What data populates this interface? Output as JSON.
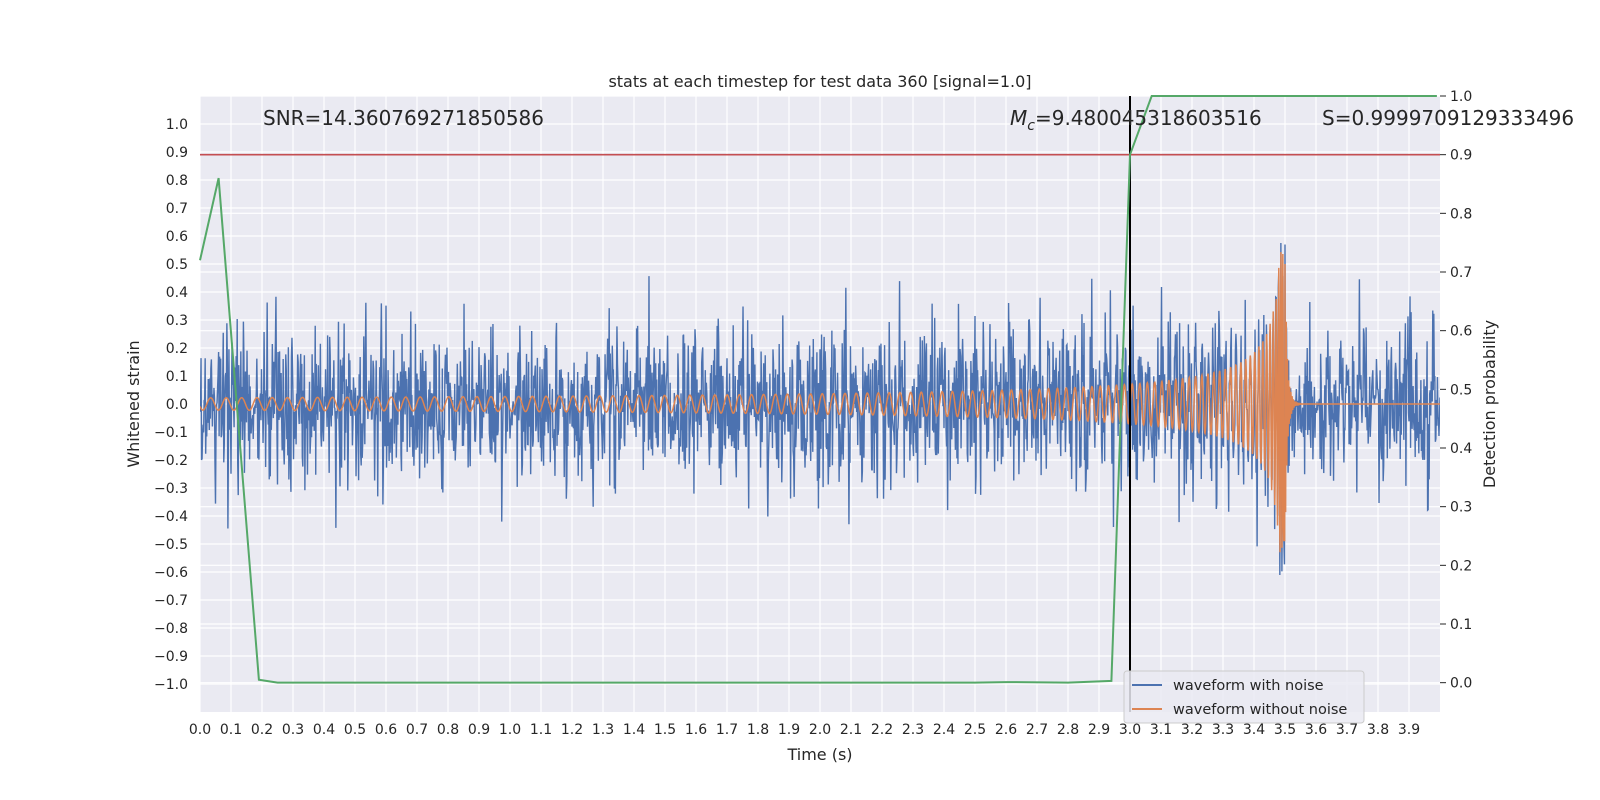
{
  "chart_data": {
    "type": "line",
    "title": "stats at each timestep for test data 360 [signal=1.0]",
    "xlabel": "Time (s)",
    "ylabel": "Whitened strain",
    "y2label": "Detection probability",
    "xlim": [
      0.0,
      4.0
    ],
    "ylim": [
      -1.1,
      1.1
    ],
    "y2lim": [
      -0.05,
      1.0
    ],
    "xticks": [
      "0.0",
      "0.1",
      "0.2",
      "0.3",
      "0.4",
      "0.5",
      "0.6",
      "0.7",
      "0.8",
      "0.9",
      "1.0",
      "1.1",
      "1.2",
      "1.3",
      "1.4",
      "1.5",
      "1.6",
      "1.7",
      "1.8",
      "1.9",
      "2.0",
      "2.1",
      "2.2",
      "2.3",
      "2.4",
      "2.5",
      "2.6",
      "2.7",
      "2.8",
      "2.9",
      "3.0",
      "3.1",
      "3.2",
      "3.3",
      "3.4",
      "3.5",
      "3.6",
      "3.7",
      "3.8",
      "3.9"
    ],
    "yticks": [
      "1.0",
      "0.9",
      "0.8",
      "0.7",
      "0.6",
      "0.5",
      "0.4",
      "0.3",
      "0.2",
      "0.1",
      "0.0",
      "−0.1",
      "−0.2",
      "−0.3",
      "−0.4",
      "−0.5",
      "−0.6",
      "−0.7",
      "−0.8",
      "−0.9",
      "−1.0"
    ],
    "y2ticks": [
      "1.0",
      "0.9",
      "0.8",
      "0.7",
      "0.6",
      "0.5",
      "0.4",
      "0.3",
      "0.2",
      "0.1",
      "0.0"
    ],
    "annotations": {
      "snr": "SNR=14.360769271850586",
      "mc_symbol": "M",
      "mc_sub": "c",
      "mc_value": "=9.480045318603516",
      "s": "S=0.9999709129333496"
    },
    "threshold_y2": 0.9,
    "event_time": 3.0,
    "chirp_merger_time": 3.5,
    "noise_amplitude_typical": 0.35,
    "noise_seed": 360,
    "series": [
      {
        "name": "waveform with noise",
        "color": "#4c72b0"
      },
      {
        "name": "waveform without noise",
        "color": "#dd8452"
      },
      {
        "name": "detection probability",
        "color": "#55a868",
        "x": [
          0.0,
          0.06,
          0.19,
          0.25,
          0.4,
          1.0,
          1.5,
          2.0,
          2.5,
          2.6,
          2.8,
          2.94,
          3.0,
          3.07,
          3.5,
          3.99
        ],
        "values": [
          0.72,
          0.86,
          0.005,
          0.0,
          0.0,
          0.0,
          0.0,
          0.0,
          0.0,
          0.001,
          0.0,
          0.003,
          0.9,
          1.0,
          1.0,
          1.0
        ]
      }
    ],
    "legend": {
      "position": "bottom-right",
      "entries": [
        "waveform with noise",
        "waveform without noise"
      ]
    },
    "colors": {
      "background": "#eaeaf2",
      "grid": "#ffffff",
      "threshold": "#c44e52",
      "event_line": "#000000"
    }
  }
}
